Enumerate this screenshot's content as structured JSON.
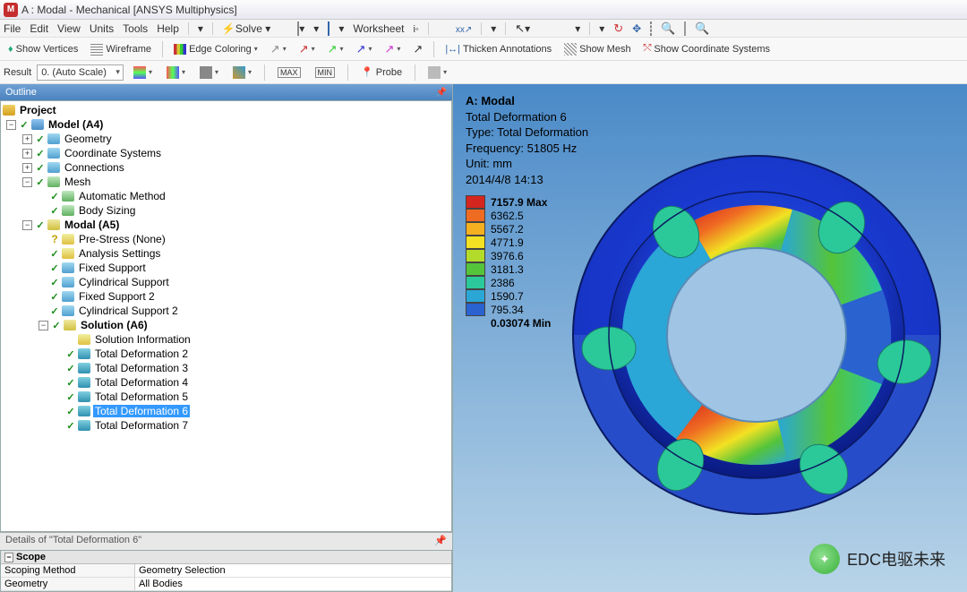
{
  "window_title": "A : Modal - Mechanical [ANSYS Multiphysics]",
  "menus": [
    "File",
    "Edit",
    "View",
    "Units",
    "Tools",
    "Help"
  ],
  "toolbar1": {
    "solve": "Solve",
    "worksheet": "Worksheet"
  },
  "toolbar2": {
    "show_vertices": "Show Vertices",
    "wireframe": "Wireframe",
    "edge_coloring": "Edge Coloring",
    "thicken": "Thicken Annotations",
    "show_mesh": "Show Mesh",
    "show_cs": "Show Coordinate Systems"
  },
  "result_bar": {
    "label": "Result",
    "scale": "0. (Auto Scale)",
    "probe": "Probe"
  },
  "outline_title": "Outline",
  "tree": {
    "project": "Project",
    "model": "Model (A4)",
    "geometry": "Geometry",
    "cs": "Coordinate Systems",
    "connections": "Connections",
    "mesh": "Mesh",
    "auto_method": "Automatic Method",
    "body_sizing": "Body Sizing",
    "modal": "Modal (A5)",
    "prestress": "Pre-Stress (None)",
    "analysis": "Analysis Settings",
    "fixed": "Fixed Support",
    "cyl": "Cylindrical Support",
    "fixed2": "Fixed Support 2",
    "cyl2": "Cylindrical Support 2",
    "solution": "Solution (A6)",
    "sol_info": "Solution Information",
    "td2": "Total Deformation 2",
    "td3": "Total Deformation 3",
    "td4": "Total Deformation 4",
    "td5": "Total Deformation 5",
    "td6": "Total Deformation 6",
    "td7": "Total Deformation 7"
  },
  "details": {
    "header": "Details of \"Total Deformation 6\"",
    "scope": "Scope",
    "scoping_method_k": "Scoping Method",
    "scoping_method_v": "Geometry Selection",
    "geometry_k": "Geometry",
    "geometry_v": "All Bodies"
  },
  "viewport": {
    "title": "A: Modal",
    "result": "Total Deformation 6",
    "type": "Type: Total Deformation",
    "freq": "Frequency: 51805 Hz",
    "unit": "Unit: mm",
    "date": "2014/4/8 14:13"
  },
  "legend": {
    "colors": [
      "#d4261e",
      "#ef6b22",
      "#f5b021",
      "#f2e223",
      "#b3dc2a",
      "#55c43a",
      "#2bc99a",
      "#2aa7d6",
      "#2a62d0",
      "#1a2ad0"
    ],
    "labels": [
      "7157.9 Max",
      "6362.5",
      "5567.2",
      "4771.9",
      "3976.6",
      "3181.3",
      "2386",
      "1590.7",
      "795.34",
      "0.03074 Min"
    ]
  },
  "watermark": "EDC电驱未来"
}
